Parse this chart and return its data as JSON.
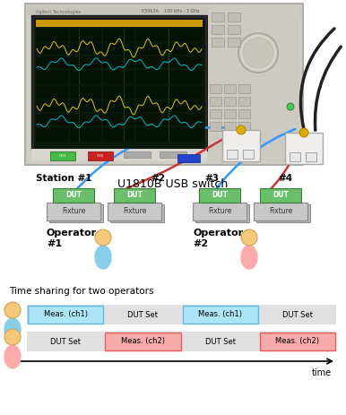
{
  "bg_color": "#ffffff",
  "title_text": "U1810B USB switch",
  "time_sharing_title": "Time sharing for two operators",
  "time_label": "time",
  "station1_label": "Station #1",
  "station2_label": "#2",
  "station3_label": "#3",
  "station4_label": "#4",
  "operator1_label": "Operator\n#1",
  "operator2_label": "Operator\n#2",
  "row1_blocks": [
    {
      "label": "Meas. (ch1)",
      "colored": true
    },
    {
      "label": "DUT Set",
      "colored": false
    },
    {
      "label": "Meas. (ch1)",
      "colored": true
    },
    {
      "label": "DUT Set",
      "colored": false
    }
  ],
  "row2_blocks": [
    {
      "label": "DUT Set",
      "colored": false
    },
    {
      "label": "Meas. (ch2)",
      "colored": true
    },
    {
      "label": "DUT Set",
      "colored": false
    },
    {
      "label": "Meas. (ch2)",
      "colored": true
    }
  ],
  "ch1_color": "#aee4f7",
  "ch1_border": "#5bb8e8",
  "ch2_color": "#f7aaaa",
  "ch2_border": "#e85b5b",
  "instr_bg": "#d4d0c8",
  "instr_body": "#c8c4bc",
  "screen_bg": "#0a1a0a",
  "trace_color1": "#00cc44",
  "trace_color2": "#00aacc",
  "btn_green": "#44bb44",
  "btn_red": "#cc2222",
  "btn_blue": "#2244cc",
  "cable_blue": "#3399ff",
  "cable_red": "#cc3333",
  "cable_black": "#222222",
  "dut_green": "#6abf6a",
  "fixture_gray": "#c8c8c8",
  "switch_box": "#f0eeec",
  "operator1_body": "#87ceeb",
  "operator2_body": "#ffaaaa",
  "head_color": "#f5c87a"
}
